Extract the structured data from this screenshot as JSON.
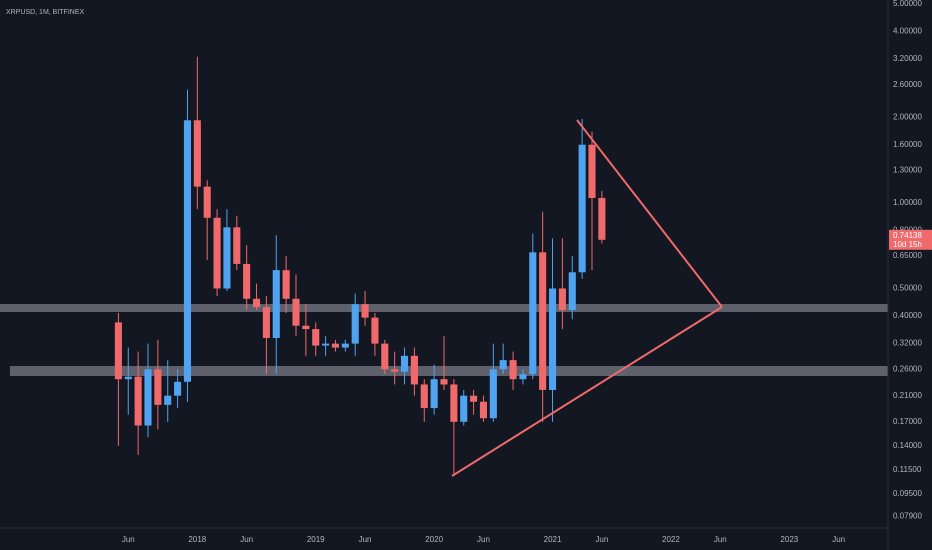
{
  "chart_data": {
    "type": "candlestick",
    "title": "XRPUSD, 1M, BITFINEX",
    "x": [
      "2017-05",
      "2017-06",
      "2017-07",
      "2017-08",
      "2017-09",
      "2017-10",
      "2017-11",
      "2017-12",
      "2018-01",
      "2018-02",
      "2018-03",
      "2018-04",
      "2018-05",
      "2018-06",
      "2018-07",
      "2018-08",
      "2018-09",
      "2018-10",
      "2018-11",
      "2018-12",
      "2019-01",
      "2019-02",
      "2019-03",
      "2019-04",
      "2019-05",
      "2019-06",
      "2019-07",
      "2019-08",
      "2019-09",
      "2019-10",
      "2019-11",
      "2019-12",
      "2020-01",
      "2020-02",
      "2020-03",
      "2020-04",
      "2020-05",
      "2020-06",
      "2020-07",
      "2020-08",
      "2020-09",
      "2020-10",
      "2020-11",
      "2020-12",
      "2021-01",
      "2021-02",
      "2021-03",
      "2021-04",
      "2021-05",
      "2021-06"
    ],
    "open": [
      0.38,
      0.24,
      0.245,
      0.165,
      0.26,
      0.195,
      0.21,
      0.235,
      1.95,
      1.14,
      0.886,
      0.5,
      0.82,
      0.61,
      0.46,
      0.43,
      0.335,
      0.58,
      0.46,
      0.37,
      0.36,
      0.315,
      0.32,
      0.31,
      0.32,
      0.44,
      0.395,
      0.32,
      0.26,
      0.255,
      0.29,
      0.23,
      0.19,
      0.24,
      0.23,
      0.17,
      0.21,
      0.2,
      0.175,
      0.26,
      0.28,
      0.24,
      0.25,
      0.67,
      0.22,
      0.5,
      0.42,
      0.57,
      1.6,
      1.04
    ],
    "high": [
      0.41,
      0.31,
      0.3,
      0.32,
      0.33,
      0.28,
      0.26,
      2.5,
      3.26,
      1.2,
      0.95,
      0.95,
      0.9,
      0.71,
      0.52,
      0.47,
      0.77,
      0.65,
      0.56,
      0.44,
      0.38,
      0.34,
      0.33,
      0.33,
      0.48,
      0.49,
      0.41,
      0.33,
      0.3,
      0.31,
      0.31,
      0.24,
      0.27,
      0.34,
      0.24,
      0.22,
      0.22,
      0.21,
      0.32,
      0.32,
      0.3,
      0.26,
      0.78,
      0.93,
      0.75,
      0.75,
      0.65,
      1.97,
      1.78,
      1.1
    ],
    "low": [
      0.14,
      0.18,
      0.13,
      0.15,
      0.16,
      0.17,
      0.19,
      0.2,
      0.95,
      0.63,
      0.47,
      0.49,
      0.58,
      0.42,
      0.42,
      0.25,
      0.25,
      0.41,
      0.34,
      0.29,
      0.29,
      0.29,
      0.3,
      0.3,
      0.29,
      0.37,
      0.29,
      0.25,
      0.23,
      0.23,
      0.21,
      0.17,
      0.18,
      0.22,
      0.11,
      0.165,
      0.18,
      0.17,
      0.17,
      0.25,
      0.22,
      0.23,
      0.24,
      0.17,
      0.17,
      0.36,
      0.39,
      0.54,
      0.58,
      0.72
    ],
    "close": [
      0.24,
      0.245,
      0.165,
      0.26,
      0.195,
      0.21,
      0.235,
      1.95,
      1.14,
      0.886,
      0.5,
      0.82,
      0.61,
      0.46,
      0.43,
      0.335,
      0.58,
      0.46,
      0.37,
      0.36,
      0.315,
      0.32,
      0.31,
      0.32,
      0.44,
      0.395,
      0.32,
      0.26,
      0.255,
      0.29,
      0.23,
      0.19,
      0.24,
      0.23,
      0.17,
      0.21,
      0.2,
      0.175,
      0.26,
      0.28,
      0.24,
      0.25,
      0.67,
      0.22,
      0.5,
      0.42,
      0.57,
      1.6,
      1.04,
      0.74138
    ],
    "up_color": "#4fa3f0",
    "down_color": "#f0696b",
    "countdown": "10d 15h",
    "log_scale": true,
    "grid": false,
    "xlim": [
      "2016-05",
      "2023-11"
    ],
    "xticks": [
      {
        "value": "2017-06",
        "label": "Jun"
      },
      {
        "value": "2018-01",
        "label": "2018"
      },
      {
        "value": "2018-06",
        "label": "Jun"
      },
      {
        "value": "2019-01",
        "label": "2019"
      },
      {
        "value": "2019-06",
        "label": "Jun"
      },
      {
        "value": "2020-01",
        "label": "2020"
      },
      {
        "value": "2020-06",
        "label": "Jun"
      },
      {
        "value": "2021-01",
        "label": "2021"
      },
      {
        "value": "2021-06",
        "label": "Jun"
      },
      {
        "value": "2022-01",
        "label": "2022"
      },
      {
        "value": "2022-06",
        "label": "Jun"
      },
      {
        "value": "2023-01",
        "label": "2023"
      },
      {
        "value": "2023-06",
        "label": "Jun"
      }
    ],
    "ylim": [
      0.072,
      5.16
    ],
    "yticks": [
      {
        "value": 5,
        "label": "5.00000"
      },
      {
        "value": 4,
        "label": "4.00000"
      },
      {
        "value": 3.2,
        "label": "3.20000"
      },
      {
        "value": 2.6,
        "label": "2.60000"
      },
      {
        "value": 2,
        "label": "2.00000"
      },
      {
        "value": 1.6,
        "label": "1.60000"
      },
      {
        "value": 1.3,
        "label": "1.30000"
      },
      {
        "value": 1,
        "label": "1.00000"
      },
      {
        "value": 0.8,
        "label": "0.80000"
      },
      {
        "value": 0.65,
        "label": "0.65000"
      },
      {
        "value": 0.5,
        "label": "0.50000"
      },
      {
        "value": 0.4,
        "label": "0.40000"
      },
      {
        "value": 0.32,
        "label": "0.32000"
      },
      {
        "value": 0.26,
        "label": "0.26000"
      },
      {
        "value": 0.21,
        "label": "0.21000"
      },
      {
        "value": 0.17,
        "label": "0.17000"
      },
      {
        "value": 0.14,
        "label": "0.14000"
      },
      {
        "value": 0.115,
        "label": "0.11500"
      },
      {
        "value": 0.095,
        "label": "0.09500"
      },
      {
        "value": 0.079,
        "label": "0.07900"
      }
    ]
  }
}
